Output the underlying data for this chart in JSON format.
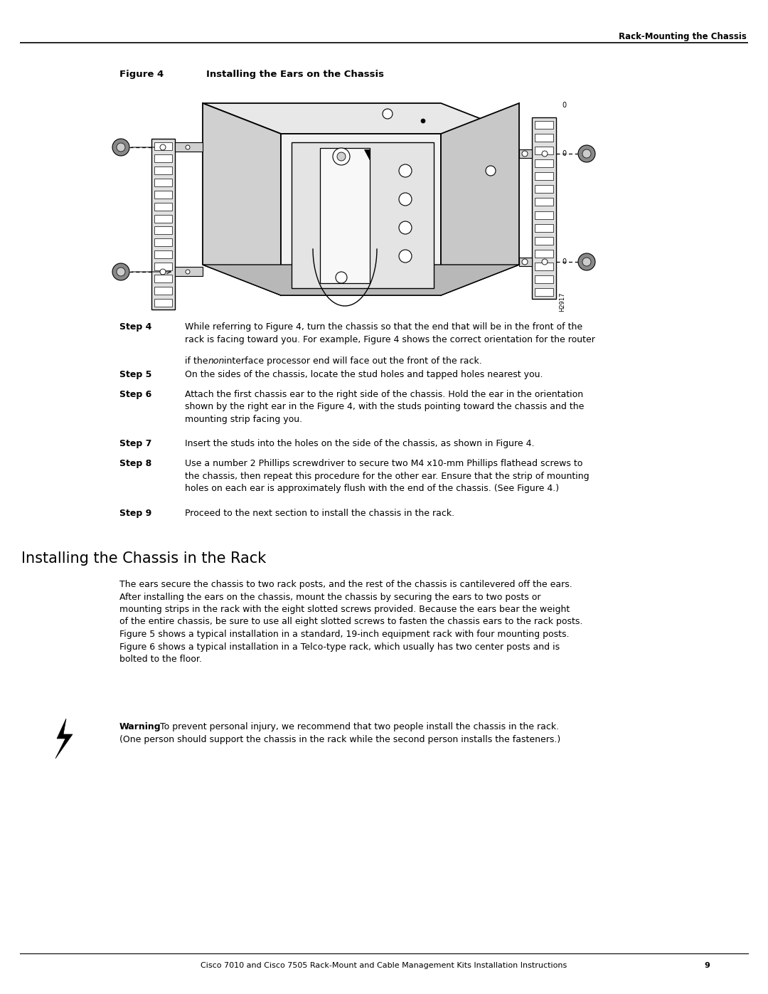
{
  "page_width": 10.8,
  "page_height": 13.97,
  "background_color": "#ffffff",
  "header_text": "Rack-Mounting the Chassis",
  "header_fontsize": 8.5,
  "figure_label": "Figure 4",
  "figure_title": "Installing the Ears on the Chassis",
  "figure_fontsize": 9.5,
  "body_fontsize": 9.0,
  "step_fontsize": 9.0,
  "footer_text": "Cisco 7010 and Cisco 7505 Rack-Mount and Cable Management Kits Installation Instructions",
  "footer_page": "9",
  "footer_fontsize": 8.0,
  "section_title": "Installing the Chassis in the Rack",
  "section_title_fontsize": 15,
  "section_body": "The ears secure the chassis to two rack posts, and the rest of the chassis is cantilevered off the ears.\nAfter installing the ears on the chassis, mount the chassis by securing the ears to two posts or\nmounting strips in the rack with the eight slotted screws provided. Because the ears bear the weight\nof the entire chassis, be sure to use all eight slotted screws to fasten the chassis ears to the rack posts.\nFigure 5 shows a typical installation in a standard, 19-inch equipment rack with four mounting posts.\nFigure 6 shows a typical installation in a Telco-type rack, which usually has two center posts and is\nbolted to the floor.",
  "warning_label": "Warning",
  "warning_line1": "   To prevent personal injury, we recommend that two people install the chassis in the rack.",
  "warning_line2": "(One person should support the chassis in the rack while the second person installs the fasteners.)"
}
